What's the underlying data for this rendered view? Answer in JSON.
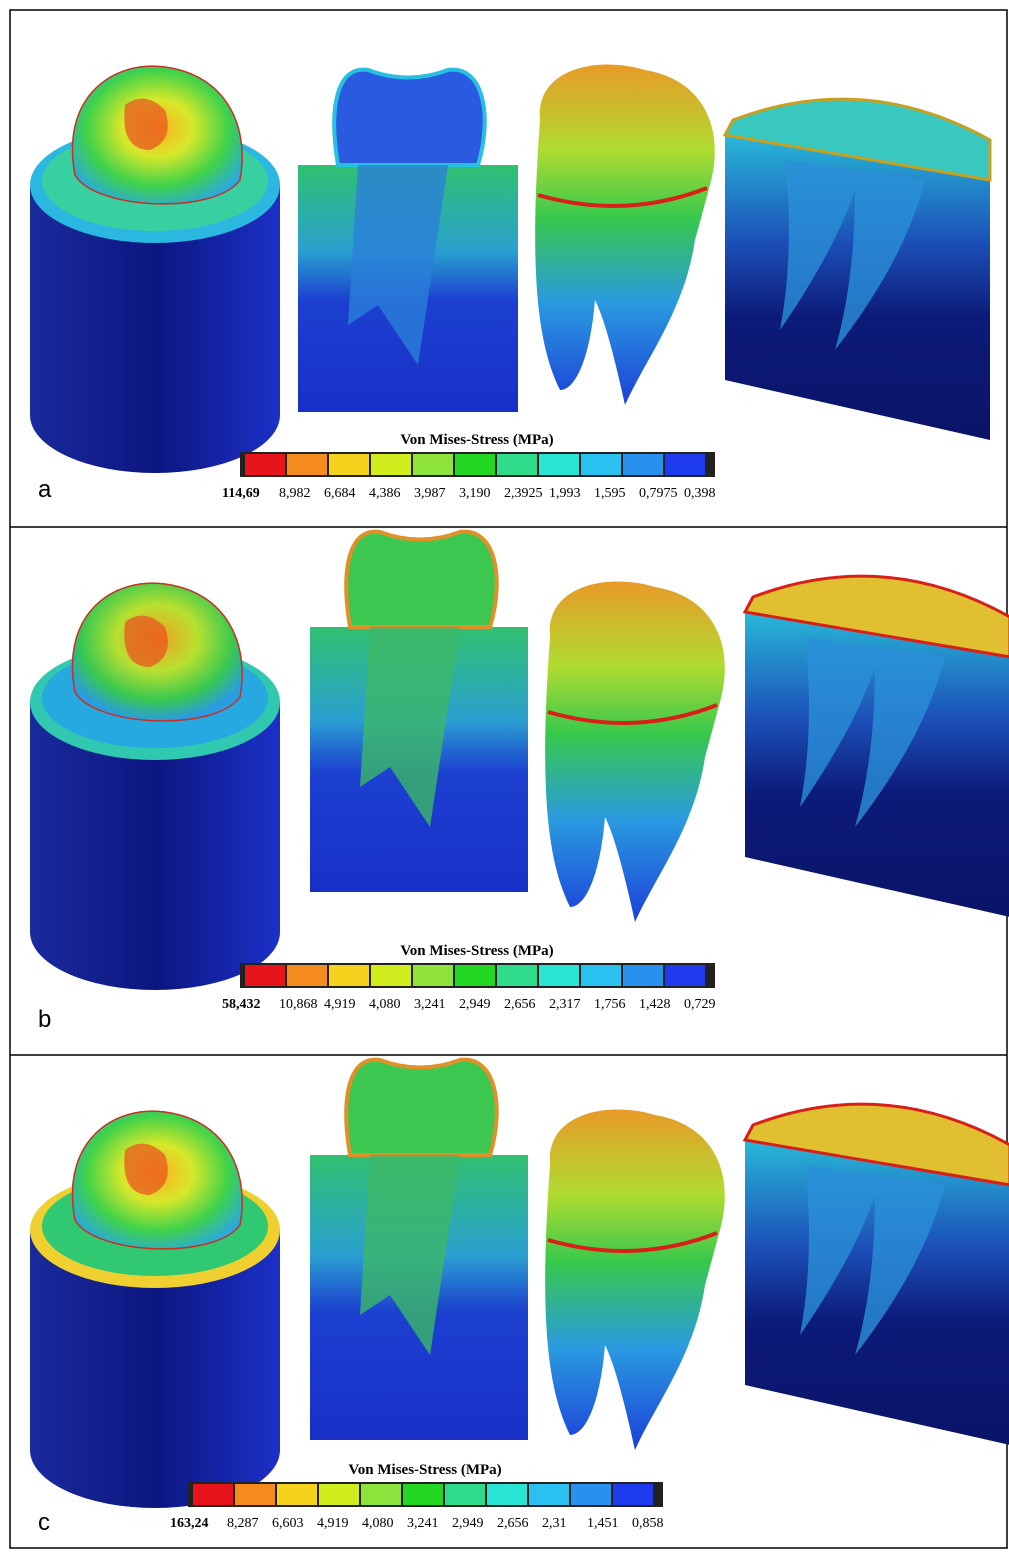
{
  "panels": [
    {
      "label": "a",
      "legend": {
        "title": "Von Mises-Stress (MPa)",
        "labels": [
          "114,69",
          "8,982",
          "6,684",
          "4,386",
          "3,987",
          "3,190",
          "2,3925",
          "1,993",
          "1,595",
          "0,7975",
          "0,398"
        ]
      }
    },
    {
      "label": "b",
      "legend": {
        "title": "Von Mises-Stress (MPa)",
        "labels": [
          "58,432",
          "10,868",
          "4,919",
          "4,080",
          "3,241",
          "2,949",
          "2,656",
          "2,317",
          "1,756",
          "1,428",
          "0,729"
        ]
      }
    },
    {
      "label": "c",
      "legend": {
        "title": "Von Mises-Stress (MPa)",
        "labels": [
          "163,24",
          "8,287",
          "6,603",
          "4,919",
          "4,080",
          "3,241",
          "2,949",
          "2,656",
          "2,31",
          "1,451",
          "0,858"
        ]
      }
    }
  ]
}
